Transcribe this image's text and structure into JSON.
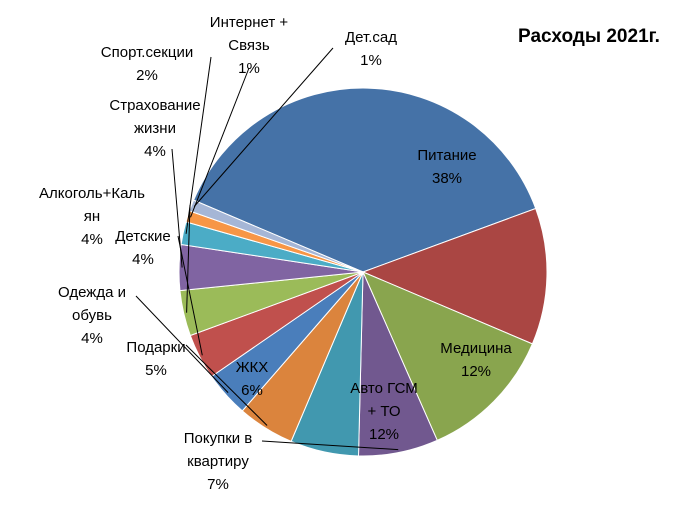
{
  "chart_data": {
    "type": "pie",
    "title": "Расходы 2021г.",
    "slices": [
      {
        "label": [
          "Питание"
        ],
        "value": 38,
        "pct": "38%",
        "color": "#4572A7"
      },
      {
        "label": [
          "Медицина"
        ],
        "value": 12,
        "pct": "12%",
        "color": "#AA4643"
      },
      {
        "label": [
          "Авто ГСМ",
          "+ ТО"
        ],
        "value": 12,
        "pct": "12%",
        "color": "#89A54E"
      },
      {
        "label": [
          "Покупки в",
          "квартиру"
        ],
        "value": 7,
        "pct": "7%",
        "color": "#71588F"
      },
      {
        "label": [
          "ЖКХ"
        ],
        "value": 6,
        "pct": "6%",
        "color": "#4198AF"
      },
      {
        "label": [
          "Подарки"
        ],
        "value": 5,
        "pct": "5%",
        "color": "#DB843D"
      },
      {
        "label": [
          "Одежда и",
          "обувь"
        ],
        "value": 4,
        "pct": "4%",
        "color": "#4A7EBB"
      },
      {
        "label": [
          "Детские"
        ],
        "value": 4,
        "pct": "4%",
        "color": "#C0504D"
      },
      {
        "label": [
          "Алкоголь+Каль",
          "ян"
        ],
        "value": 4,
        "pct": "4%",
        "color": "#9BBB59"
      },
      {
        "label": [
          "Страхование",
          "жизни"
        ],
        "value": 4,
        "pct": "4%",
        "color": "#8064A2"
      },
      {
        "label": [
          "Спорт.секции"
        ],
        "value": 2,
        "pct": "2%",
        "color": "#4BACC6"
      },
      {
        "label": [
          "Интернет +",
          "Связь"
        ],
        "value": 1,
        "pct": "1%",
        "color": "#F79646"
      },
      {
        "label": [
          "Дет.сад"
        ],
        "value": 1,
        "pct": "1%",
        "color": "#A5B6D6"
      }
    ]
  }
}
